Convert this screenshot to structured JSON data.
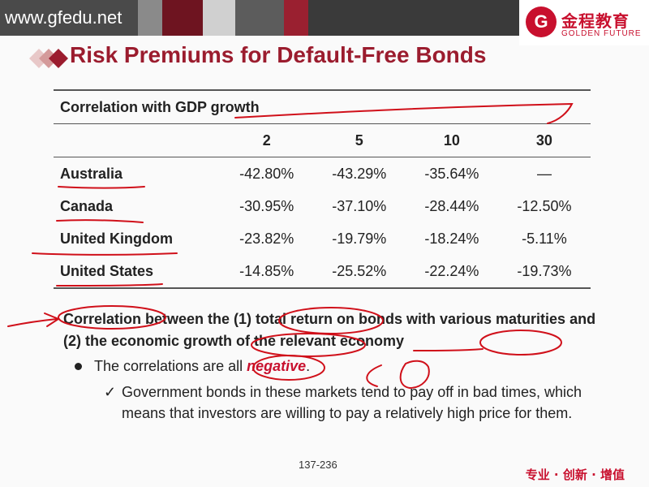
{
  "header": {
    "site": "www.gfedu.net",
    "logo_cn": "金程教育",
    "logo_en": "GOLDEN FUTURE",
    "logo_mark": "G"
  },
  "slide": {
    "title": "Risk Premiums for Default-Free Bonds"
  },
  "table": {
    "caption": "Correlation with GDP growth",
    "columns": [
      "2",
      "5",
      "10",
      "30"
    ],
    "rows": [
      {
        "label": "Australia",
        "values": [
          "-42.80%",
          "-43.29%",
          "-35.64%",
          "—"
        ]
      },
      {
        "label": "Canada",
        "values": [
          "-30.95%",
          "-37.10%",
          "-28.44%",
          "-12.50%"
        ]
      },
      {
        "label": "United Kingdom",
        "values": [
          "-23.82%",
          "-19.79%",
          "-18.24%",
          "-5.11%"
        ]
      },
      {
        "label": "United States",
        "values": [
          "-14.85%",
          "-25.52%",
          "-22.24%",
          "-19.73%"
        ]
      }
    ]
  },
  "bullets": {
    "main": "Correlation between the (1) total return on bonds with various maturities and (2) the economic growth of the relevant economy",
    "sub_prefix": "The correlations are all ",
    "sub_emph": "negative",
    "sub_suffix": ".",
    "check_mark": "✓",
    "detail": "Government bonds in these markets tend to pay off in bad times, which means that investors are willing to pay a relatively high price for them."
  },
  "footer": {
    "page": "137-236",
    "slogan": "专业 · 创新 · 增值"
  }
}
